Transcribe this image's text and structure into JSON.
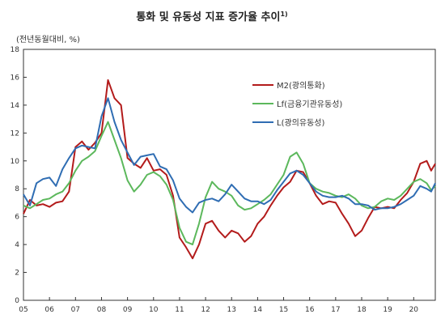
{
  "chart_data": {
    "type": "line",
    "title": "통화 및 유동성 지표 증가율 추이",
    "title_superscript": "1)",
    "ylabel": "(전년동월대비, %)",
    "xlabel": "",
    "ylim": [
      0,
      18
    ],
    "yticks": [
      0,
      2,
      4,
      6,
      8,
      10,
      12,
      14,
      16,
      18
    ],
    "xlim": [
      2005.0,
      2020.83
    ],
    "xticks": [
      "05",
      "06",
      "07",
      "08",
      "09",
      "10",
      "11",
      "12",
      "13",
      "14",
      "15",
      "16",
      "17",
      "18",
      "19",
      "20"
    ],
    "grid": false,
    "legend_position": "top-right",
    "series": [
      {
        "name": "M2(광의통화)",
        "color": "#b31b1b",
        "points": [
          [
            2005.0,
            6.2
          ],
          [
            2005.25,
            7.2
          ],
          [
            2005.5,
            6.8
          ],
          [
            2005.75,
            6.9
          ],
          [
            2006.0,
            6.7
          ],
          [
            2006.25,
            7.0
          ],
          [
            2006.5,
            7.1
          ],
          [
            2006.75,
            7.8
          ],
          [
            2007.0,
            11.0
          ],
          [
            2007.25,
            11.4
          ],
          [
            2007.5,
            10.8
          ],
          [
            2007.75,
            11.3
          ],
          [
            2008.0,
            12.0
          ],
          [
            2008.25,
            15.8
          ],
          [
            2008.5,
            14.5
          ],
          [
            2008.75,
            14.0
          ],
          [
            2009.0,
            10.2
          ],
          [
            2009.25,
            9.8
          ],
          [
            2009.5,
            9.5
          ],
          [
            2009.75,
            10.2
          ],
          [
            2010.0,
            9.3
          ],
          [
            2010.25,
            9.4
          ],
          [
            2010.5,
            9.0
          ],
          [
            2010.75,
            7.5
          ],
          [
            2011.0,
            4.5
          ],
          [
            2011.25,
            3.8
          ],
          [
            2011.5,
            3.0
          ],
          [
            2011.75,
            4.0
          ],
          [
            2012.0,
            5.5
          ],
          [
            2012.25,
            5.7
          ],
          [
            2012.5,
            5.0
          ],
          [
            2012.75,
            4.5
          ],
          [
            2013.0,
            5.0
          ],
          [
            2013.25,
            4.8
          ],
          [
            2013.5,
            4.2
          ],
          [
            2013.75,
            4.6
          ],
          [
            2014.0,
            5.5
          ],
          [
            2014.25,
            6.0
          ],
          [
            2014.5,
            6.8
          ],
          [
            2014.75,
            7.5
          ],
          [
            2015.0,
            8.1
          ],
          [
            2015.25,
            8.5
          ],
          [
            2015.5,
            9.3
          ],
          [
            2015.75,
            9.2
          ],
          [
            2016.0,
            8.4
          ],
          [
            2016.25,
            7.5
          ],
          [
            2016.5,
            6.9
          ],
          [
            2016.75,
            7.1
          ],
          [
            2017.0,
            7.0
          ],
          [
            2017.25,
            6.2
          ],
          [
            2017.5,
            5.5
          ],
          [
            2017.75,
            4.6
          ],
          [
            2018.0,
            5.0
          ],
          [
            2018.25,
            5.9
          ],
          [
            2018.5,
            6.7
          ],
          [
            2018.75,
            6.6
          ],
          [
            2019.0,
            6.7
          ],
          [
            2019.25,
            6.6
          ],
          [
            2019.5,
            7.2
          ],
          [
            2019.75,
            7.7
          ],
          [
            2020.0,
            8.5
          ],
          [
            2020.25,
            9.8
          ],
          [
            2020.5,
            10.0
          ],
          [
            2020.67,
            9.3
          ],
          [
            2020.83,
            9.8
          ]
        ]
      },
      {
        "name": "Lf(금융기관유동성)",
        "color": "#5cb85c",
        "points": [
          [
            2005.0,
            6.8
          ],
          [
            2005.25,
            6.6
          ],
          [
            2005.5,
            6.9
          ],
          [
            2005.75,
            7.2
          ],
          [
            2006.0,
            7.3
          ],
          [
            2006.25,
            7.6
          ],
          [
            2006.5,
            7.8
          ],
          [
            2006.75,
            8.4
          ],
          [
            2007.0,
            9.3
          ],
          [
            2007.25,
            10.0
          ],
          [
            2007.5,
            10.3
          ],
          [
            2007.75,
            10.7
          ],
          [
            2008.0,
            11.8
          ],
          [
            2008.25,
            12.8
          ],
          [
            2008.5,
            11.5
          ],
          [
            2008.75,
            10.2
          ],
          [
            2009.0,
            8.6
          ],
          [
            2009.25,
            7.8
          ],
          [
            2009.5,
            8.3
          ],
          [
            2009.75,
            9.0
          ],
          [
            2010.0,
            9.2
          ],
          [
            2010.25,
            8.9
          ],
          [
            2010.5,
            8.3
          ],
          [
            2010.75,
            7.2
          ],
          [
            2011.0,
            5.2
          ],
          [
            2011.25,
            4.2
          ],
          [
            2011.5,
            4.0
          ],
          [
            2011.75,
            5.5
          ],
          [
            2012.0,
            7.4
          ],
          [
            2012.25,
            8.5
          ],
          [
            2012.5,
            8.0
          ],
          [
            2012.75,
            7.8
          ],
          [
            2013.0,
            7.5
          ],
          [
            2013.25,
            6.8
          ],
          [
            2013.5,
            6.5
          ],
          [
            2013.75,
            6.6
          ],
          [
            2014.0,
            6.9
          ],
          [
            2014.25,
            7.2
          ],
          [
            2014.5,
            7.6
          ],
          [
            2014.75,
            8.3
          ],
          [
            2015.0,
            9.0
          ],
          [
            2015.25,
            10.3
          ],
          [
            2015.5,
            10.6
          ],
          [
            2015.75,
            9.8
          ],
          [
            2016.0,
            8.4
          ],
          [
            2016.25,
            8.0
          ],
          [
            2016.5,
            7.8
          ],
          [
            2016.75,
            7.7
          ],
          [
            2017.0,
            7.5
          ],
          [
            2017.25,
            7.4
          ],
          [
            2017.5,
            7.6
          ],
          [
            2017.75,
            7.3
          ],
          [
            2018.0,
            6.8
          ],
          [
            2018.25,
            6.6
          ],
          [
            2018.5,
            6.7
          ],
          [
            2018.75,
            7.1
          ],
          [
            2019.0,
            7.3
          ],
          [
            2019.25,
            7.2
          ],
          [
            2019.5,
            7.5
          ],
          [
            2019.75,
            8.0
          ],
          [
            2020.0,
            8.5
          ],
          [
            2020.25,
            8.7
          ],
          [
            2020.5,
            8.4
          ],
          [
            2020.67,
            7.9
          ],
          [
            2020.83,
            8.2
          ]
        ]
      },
      {
        "name": "L(광의유동성)",
        "color": "#2f6db3",
        "points": [
          [
            2005.0,
            7.6
          ],
          [
            2005.25,
            6.8
          ],
          [
            2005.5,
            8.4
          ],
          [
            2005.75,
            8.7
          ],
          [
            2006.0,
            8.8
          ],
          [
            2006.25,
            8.2
          ],
          [
            2006.5,
            9.4
          ],
          [
            2006.75,
            10.2
          ],
          [
            2007.0,
            10.9
          ],
          [
            2007.25,
            11.1
          ],
          [
            2007.5,
            11.0
          ],
          [
            2007.75,
            10.9
          ],
          [
            2008.0,
            13.2
          ],
          [
            2008.25,
            14.5
          ],
          [
            2008.5,
            12.8
          ],
          [
            2008.75,
            11.5
          ],
          [
            2009.0,
            10.6
          ],
          [
            2009.25,
            9.7
          ],
          [
            2009.5,
            10.3
          ],
          [
            2009.75,
            10.4
          ],
          [
            2010.0,
            10.5
          ],
          [
            2010.25,
            9.6
          ],
          [
            2010.5,
            9.4
          ],
          [
            2010.75,
            8.6
          ],
          [
            2011.0,
            7.3
          ],
          [
            2011.25,
            6.7
          ],
          [
            2011.5,
            6.3
          ],
          [
            2011.75,
            7.0
          ],
          [
            2012.0,
            7.2
          ],
          [
            2012.25,
            7.3
          ],
          [
            2012.5,
            7.1
          ],
          [
            2012.75,
            7.6
          ],
          [
            2013.0,
            8.3
          ],
          [
            2013.25,
            7.8
          ],
          [
            2013.5,
            7.3
          ],
          [
            2013.75,
            7.1
          ],
          [
            2014.0,
            7.1
          ],
          [
            2014.25,
            6.9
          ],
          [
            2014.5,
            7.2
          ],
          [
            2014.75,
            7.9
          ],
          [
            2015.0,
            8.5
          ],
          [
            2015.25,
            9.1
          ],
          [
            2015.5,
            9.3
          ],
          [
            2015.75,
            9.0
          ],
          [
            2016.0,
            8.4
          ],
          [
            2016.25,
            7.8
          ],
          [
            2016.5,
            7.5
          ],
          [
            2016.75,
            7.4
          ],
          [
            2017.0,
            7.4
          ],
          [
            2017.25,
            7.5
          ],
          [
            2017.5,
            7.3
          ],
          [
            2017.75,
            6.9
          ],
          [
            2018.0,
            6.9
          ],
          [
            2018.25,
            6.8
          ],
          [
            2018.5,
            6.5
          ],
          [
            2018.75,
            6.6
          ],
          [
            2019.0,
            6.6
          ],
          [
            2019.25,
            6.7
          ],
          [
            2019.5,
            6.9
          ],
          [
            2019.75,
            7.2
          ],
          [
            2020.0,
            7.5
          ],
          [
            2020.25,
            8.2
          ],
          [
            2020.5,
            8.0
          ],
          [
            2020.67,
            7.8
          ],
          [
            2020.83,
            8.4
          ]
        ]
      }
    ]
  }
}
